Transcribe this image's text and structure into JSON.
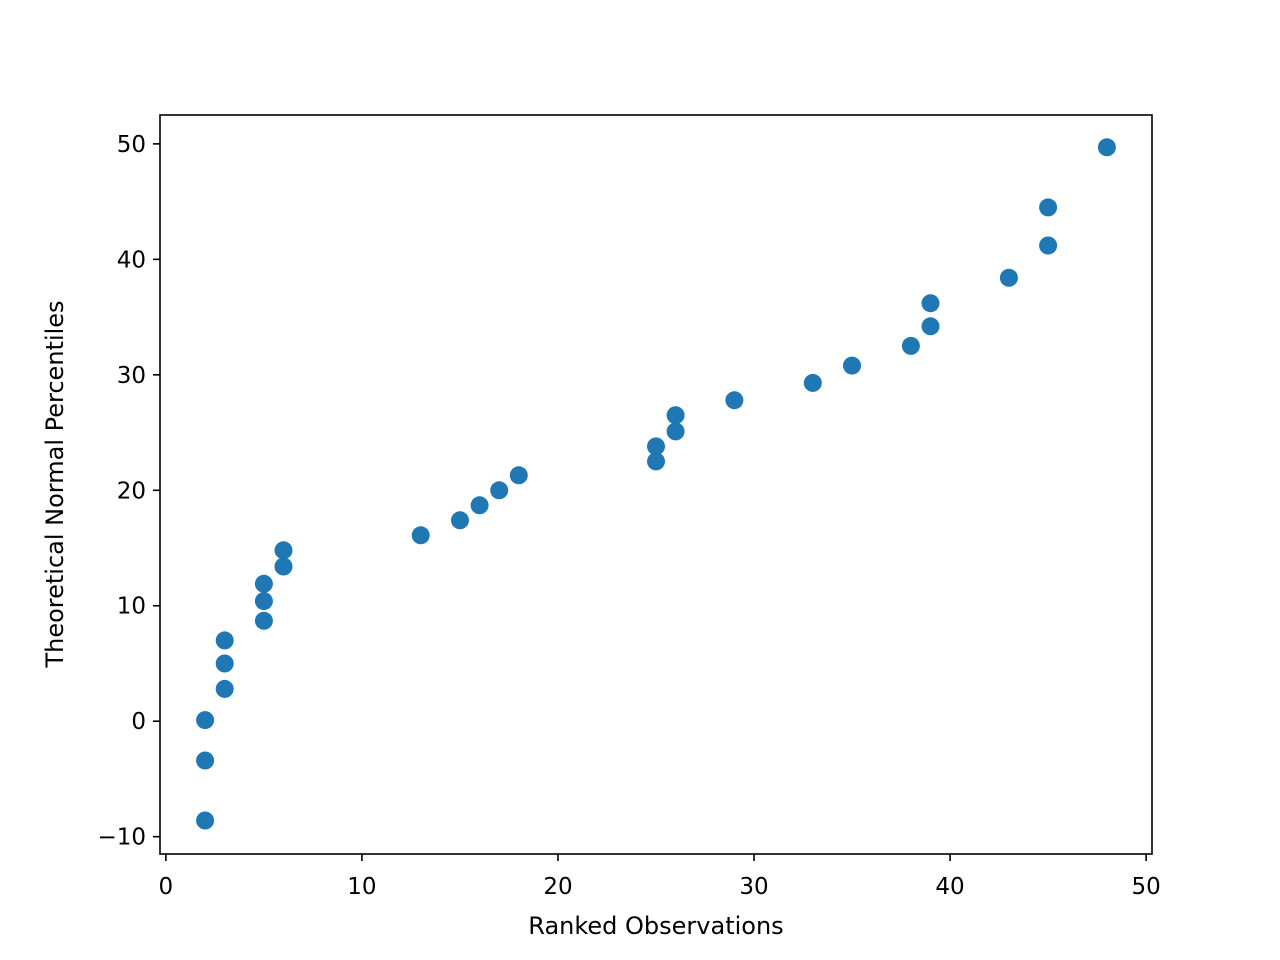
{
  "chart_data": {
    "type": "scatter",
    "title": "",
    "xlabel": "Ranked Observations",
    "ylabel": "Theoretical Normal Percentiles",
    "xlim": [
      -0.3,
      50.3
    ],
    "ylim": [
      -11.5,
      52.5
    ],
    "xticks": [
      0,
      10,
      20,
      30,
      40,
      50
    ],
    "xtick_labels": [
      "0",
      "10",
      "20",
      "30",
      "40",
      "50"
    ],
    "yticks": [
      -10,
      0,
      10,
      20,
      30,
      40,
      50
    ],
    "ytick_labels": [
      "−10",
      "0",
      "10",
      "20",
      "30",
      "40",
      "50"
    ],
    "grid": false,
    "marker_color": "#1f77b4",
    "series": [
      {
        "x": [
          2,
          2,
          2,
          3,
          3,
          3,
          5,
          5,
          5,
          6,
          6,
          13,
          15,
          16,
          17,
          18,
          25,
          25,
          26,
          26,
          29,
          33,
          35,
          38,
          39,
          39,
          43,
          45,
          45,
          48
        ],
        "y": [
          -8.6,
          -3.4,
          0.1,
          2.8,
          5.0,
          7.0,
          8.7,
          10.4,
          11.9,
          13.4,
          14.8,
          16.1,
          17.4,
          18.7,
          20.0,
          21.3,
          22.5,
          23.8,
          25.1,
          26.5,
          27.8,
          29.3,
          30.8,
          32.5,
          34.2,
          36.2,
          38.4,
          41.2,
          44.5,
          49.7
        ]
      }
    ]
  }
}
